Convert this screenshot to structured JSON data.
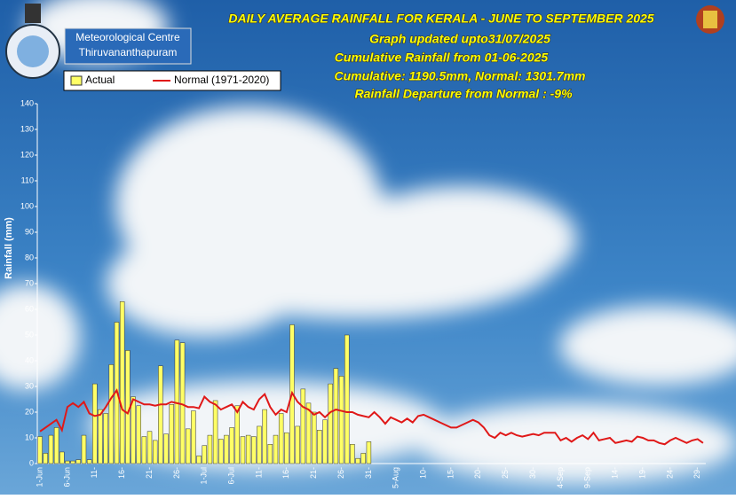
{
  "chart_data": {
    "type": "bar-line",
    "title": "DAILY AVERAGE  RAINFALL FOR KERALA - JUNE TO SEPTEMBER 2025",
    "subtitles": [
      "Graph updated upto31/07/2025",
      "Cumulative Rainfall from 01-06-2025",
      "Cumulative:  1190.5mm,  Normal: 1301.7mm",
      "Rainfall Departure from Normal    : -9%"
    ],
    "organization": [
      "Meteorological Centre",
      "Thiruvananthapuram"
    ],
    "y_label": "Rainfall (mm)",
    "ylim": [
      0,
      140
    ],
    "yticks": [
      0,
      10,
      20,
      30,
      40,
      50,
      60,
      70,
      80,
      90,
      100,
      110,
      120,
      130,
      140
    ],
    "categories": [
      "1-Jun",
      null,
      null,
      null,
      null,
      "6-Jun",
      null,
      null,
      null,
      null,
      "11-",
      null,
      null,
      null,
      null,
      "16-",
      null,
      null,
      null,
      null,
      "21-",
      null,
      null,
      null,
      null,
      "26-",
      null,
      null,
      null,
      null,
      "1-Jul",
      null,
      null,
      null,
      null,
      "6-Jul",
      null,
      null,
      null,
      null,
      "11-",
      null,
      null,
      null,
      null,
      "16-",
      null,
      null,
      null,
      null,
      "21-",
      null,
      null,
      null,
      null,
      "26-",
      null,
      null,
      null,
      null,
      "31-",
      null,
      null,
      null,
      null,
      "5-Aug",
      null,
      null,
      null,
      null,
      "10-",
      null,
      null,
      null,
      null,
      "15-",
      null,
      null,
      null,
      null,
      "20-",
      null,
      null,
      null,
      null,
      "25-",
      null,
      null,
      null,
      null,
      "30-",
      null,
      null,
      null,
      null,
      "4-Sep",
      null,
      null,
      null,
      null,
      "9-Sep",
      null,
      null,
      null,
      null,
      "14-",
      null,
      null,
      null,
      null,
      "19-",
      null,
      null,
      null,
      null,
      "24-",
      null,
      null,
      null,
      null,
      "29-",
      null
    ],
    "series": [
      {
        "name": "Actual",
        "kind": "bar",
        "color": "#ffff66",
        "values": [
          10.5,
          4,
          11,
          14,
          4.5,
          1,
          1,
          1.5,
          11,
          1.5,
          31,
          21,
          19.5,
          38.5,
          55,
          63,
          44,
          26,
          22.5,
          10.5,
          12.5,
          9,
          38,
          11.5,
          23,
          48,
          47,
          13.5,
          20.5,
          3,
          7,
          11,
          24.5,
          9.5,
          11,
          14,
          22.5,
          10.5,
          11,
          10.5,
          14.5,
          21,
          7.5,
          11,
          19.5,
          12,
          54,
          14.5,
          29,
          23.5,
          20,
          13,
          17,
          31,
          37,
          34,
          50,
          7.5,
          2,
          4,
          8.5,
          null,
          null,
          null,
          null,
          null,
          null,
          null,
          null,
          null,
          null,
          null,
          null,
          null,
          null,
          null,
          null,
          null,
          null,
          null,
          null,
          null,
          null,
          null,
          null,
          null,
          null,
          null,
          null,
          null,
          null,
          null,
          null,
          null,
          null,
          null,
          null,
          null,
          null,
          null,
          null,
          null,
          null,
          null,
          null,
          null,
          null,
          null,
          null,
          null,
          null,
          null,
          null,
          null,
          null,
          null,
          null,
          null,
          null,
          null,
          null,
          null
        ]
      },
      {
        "name": "Normal (1971-2020)",
        "kind": "line",
        "color": "#e01818",
        "values": [
          12.5,
          14,
          15.5,
          17,
          13,
          22,
          23.5,
          22,
          24,
          19.5,
          18.5,
          19,
          22,
          25.5,
          28.5,
          21,
          19.5,
          25,
          24,
          23,
          23,
          22.5,
          23,
          23,
          24,
          23.5,
          23,
          22,
          22,
          21.5,
          26,
          24,
          23,
          21,
          22,
          23,
          20,
          24,
          22,
          21,
          25,
          27,
          22,
          19,
          21,
          20,
          27.5,
          24,
          22,
          21,
          19,
          20,
          18,
          20,
          21,
          20.5,
          20,
          20,
          19,
          18.5,
          18,
          20,
          18,
          15.5,
          18,
          17,
          16,
          17.5,
          16,
          18.5,
          19,
          18,
          17,
          16,
          15,
          14,
          14,
          15,
          16,
          17,
          16,
          14,
          11,
          10,
          12,
          11,
          12,
          11,
          10.5,
          11,
          11.5,
          11,
          12,
          12,
          12,
          9,
          10,
          8.5,
          10,
          11,
          9.5,
          12,
          9,
          9.5,
          10,
          8,
          8.5,
          9,
          8.5,
          10.5,
          10,
          9,
          9,
          8,
          7.5,
          9,
          10,
          9,
          8,
          9,
          9.5,
          8
        ]
      }
    ]
  }
}
